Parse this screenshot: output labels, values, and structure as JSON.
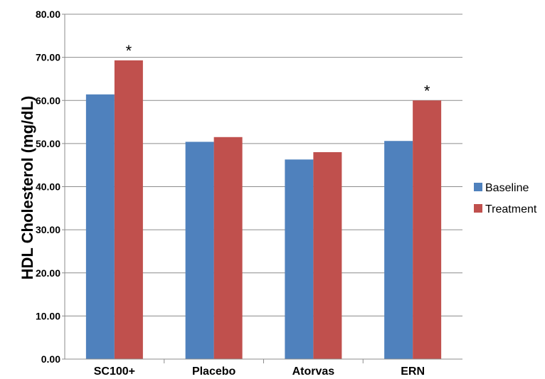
{
  "chart_data": {
    "type": "bar",
    "title": "",
    "xlabel": "",
    "ylabel": "HDL Cholesterol (mg/dL)",
    "ylim": [
      0,
      80
    ],
    "yticks": [
      "0.00",
      "10.00",
      "20.00",
      "30.00",
      "40.00",
      "50.00",
      "60.00",
      "70.00",
      "80.00"
    ],
    "grid": "horizontal",
    "legend_position": "right",
    "categories": [
      "SC100+",
      "Placebo",
      "Atorvas",
      "ERN"
    ],
    "series": [
      {
        "name": "Baseline",
        "color": "#4f81bd",
        "values": [
          61.4,
          50.4,
          46.3,
          50.6
        ]
      },
      {
        "name": "Treatment",
        "color": "#c0504d",
        "values": [
          69.3,
          51.5,
          48.0,
          60.0
        ]
      }
    ],
    "annotations": [
      {
        "category": "SC100+",
        "series": "Treatment",
        "text": "*"
      },
      {
        "category": "ERN",
        "series": "Treatment",
        "text": "*"
      }
    ]
  }
}
